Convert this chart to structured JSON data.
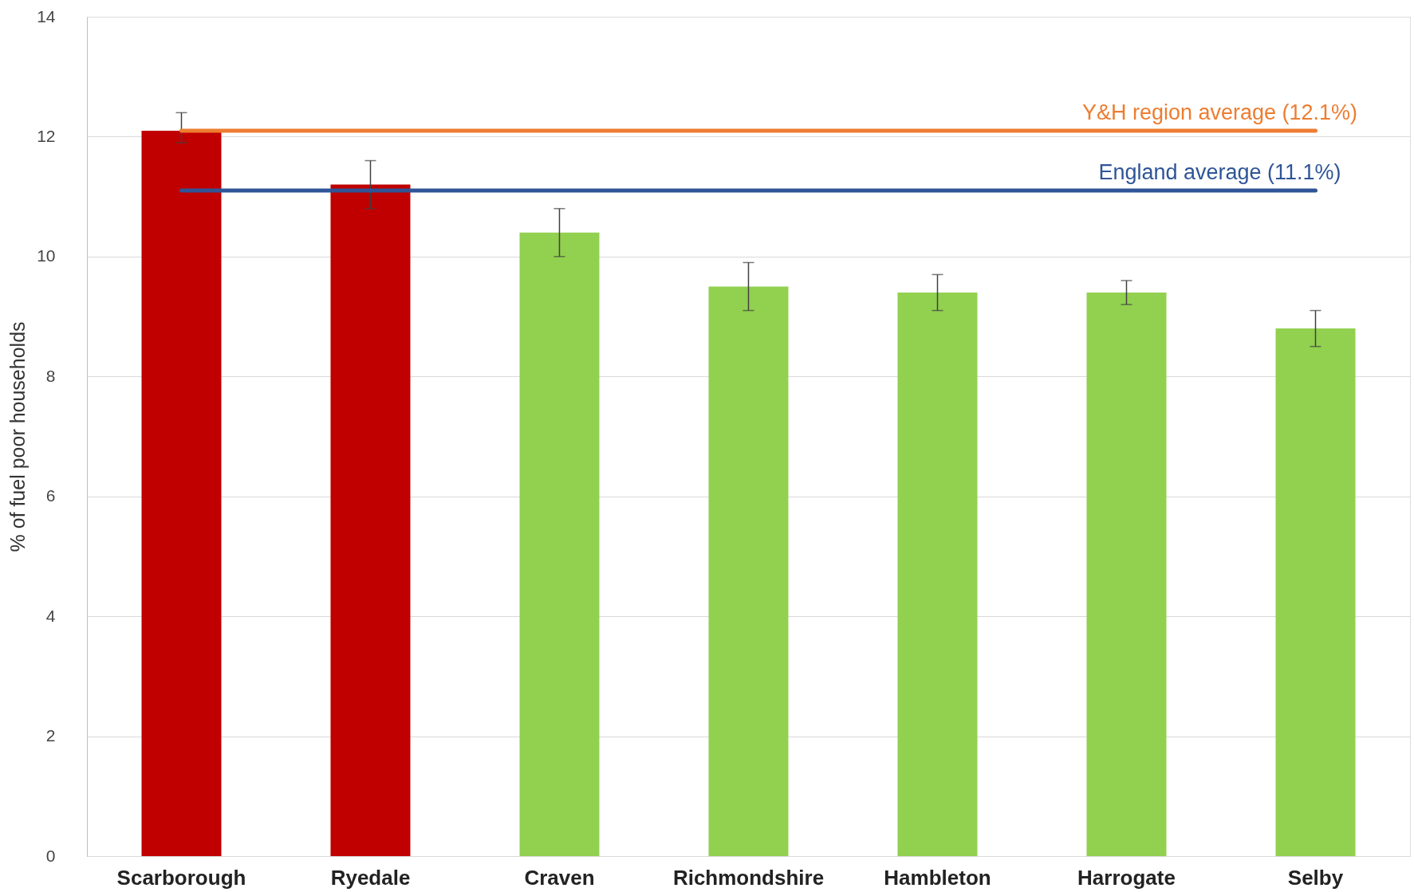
{
  "chart_data": {
    "type": "bar",
    "ylabel": "% of fuel poor households",
    "categories": [
      "Scarborough",
      "Ryedale",
      "Craven",
      "Richmondshire",
      "Hambleton",
      "Harrogate",
      "Selby"
    ],
    "values": [
      12.1,
      11.2,
      10.4,
      9.5,
      9.4,
      9.4,
      8.8
    ],
    "colors": [
      "#c00000",
      "#c00000",
      "#92d050",
      "#92d050",
      "#92d050",
      "#92d050",
      "#92d050"
    ],
    "errors": [
      [
        11.9,
        12.4
      ],
      [
        10.8,
        11.6
      ],
      [
        10.0,
        10.8
      ],
      [
        9.1,
        9.9
      ],
      [
        9.1,
        9.7
      ],
      [
        9.2,
        9.6
      ],
      [
        8.5,
        9.1
      ]
    ],
    "ylim": [
      0,
      14
    ],
    "yticks": [
      0,
      2,
      4,
      6,
      8,
      10,
      12,
      14
    ],
    "ref_lines": [
      {
        "axis": "y",
        "value": 12.1,
        "label": "Y&H region average (12.1%)",
        "color": "#ed7d31"
      },
      {
        "axis": "y",
        "value": 11.1,
        "label": "England average (11.1%)",
        "color": "#2f5597"
      }
    ],
    "grid": "y"
  }
}
